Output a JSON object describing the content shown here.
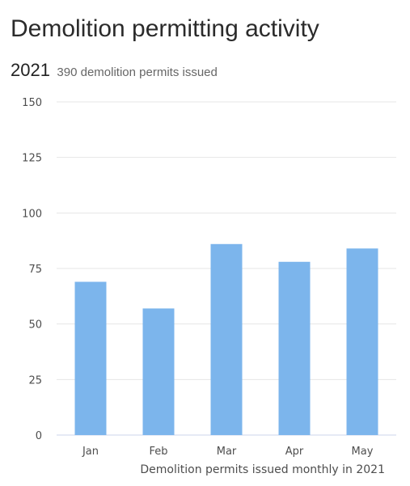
{
  "page": {
    "title": "Demolition permitting activity",
    "summary_year": "2021",
    "summary_text": "390 demolition permits issued"
  },
  "chart_data": {
    "type": "bar",
    "title": "",
    "xlabel": "Demolition permits issued monthly in 2021",
    "ylabel": "",
    "categories": [
      "Jan",
      "Feb",
      "Mar",
      "Apr",
      "May"
    ],
    "series": [
      {
        "values": [
          69,
          57,
          86,
          78,
          84
        ]
      }
    ],
    "ylim": [
      0,
      150
    ],
    "yticks": [
      "0",
      "25",
      "50",
      "75",
      "100",
      "125",
      "150"
    ],
    "grid": true,
    "bar_color": "#7cb5ec",
    "grid_color": "#e6e6e6"
  }
}
